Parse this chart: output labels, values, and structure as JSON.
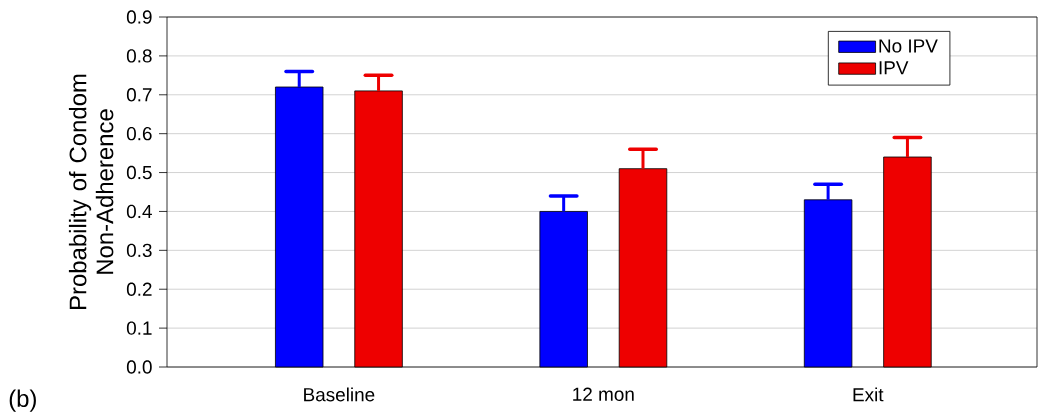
{
  "chart_data": {
    "type": "bar",
    "ylabel": "Probability of Condom Non-Adherence",
    "categories": [
      "Baseline",
      "12 mon",
      "Exit"
    ],
    "series": [
      {
        "name": "No IPV",
        "color": "#0000ff",
        "values": [
          0.72,
          0.4,
          0.43
        ],
        "errors": [
          [
            0.72,
            0.76
          ],
          [
            0.4,
            0.44
          ],
          [
            0.43,
            0.47
          ]
        ]
      },
      {
        "name": "IPV",
        "color": "#ee0000",
        "values": [
          0.71,
          0.51,
          0.54
        ],
        "errors": [
          [
            0.71,
            0.75
          ],
          [
            0.51,
            0.56
          ],
          [
            0.54,
            0.59
          ]
        ]
      }
    ],
    "ylim": [
      0,
      0.9
    ],
    "yticks": [
      {
        "value": 0,
        "label": "0.0"
      },
      {
        "value": 0.1,
        "label": "0.1"
      },
      {
        "value": 0.2,
        "label": "0.2"
      },
      {
        "value": 0.3,
        "label": "0.3"
      },
      {
        "value": 0.4,
        "label": "0.4"
      },
      {
        "value": 0.5,
        "label": "0.5"
      },
      {
        "value": 0.6,
        "label": "0.6"
      },
      {
        "value": 0.7,
        "label": "0.7"
      },
      {
        "value": 0.8,
        "label": "0.8"
      },
      {
        "value": 0.9,
        "label": "0.9"
      }
    ],
    "grid": "y",
    "legend": "top right",
    "annotations": [
      "(b)"
    ]
  }
}
